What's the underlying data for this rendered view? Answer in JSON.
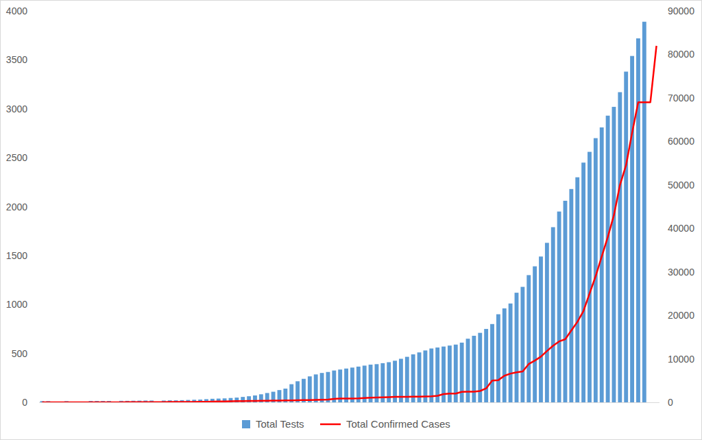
{
  "chart_data": {
    "type": "bar",
    "categories": [
      null,
      null,
      null,
      null,
      null,
      null,
      null,
      null,
      null,
      null,
      null,
      null,
      null,
      null,
      null,
      null,
      null,
      null,
      null,
      null,
      null,
      null,
      null,
      null,
      null,
      null,
      null,
      null,
      null,
      null,
      null,
      null,
      null,
      null,
      null,
      null,
      null,
      null,
      null,
      null,
      null,
      null,
      null,
      null,
      null,
      null,
      null,
      null,
      null,
      null,
      null,
      null,
      null,
      null,
      null,
      null,
      null,
      null,
      null,
      null,
      null,
      null,
      null,
      null,
      null,
      null,
      null,
      null,
      null,
      null,
      null,
      null,
      null,
      null,
      null,
      null,
      null,
      null,
      null,
      null,
      null,
      null,
      null,
      null,
      null,
      null,
      null,
      null,
      null,
      null,
      null,
      null,
      null,
      null,
      null,
      null,
      null,
      null,
      null,
      null,
      null,
      null
    ],
    "series": [
      {
        "name": "Total Tests",
        "type": "bar",
        "color": "#5b9bd5",
        "values": [
          12,
          12,
          0,
          0,
          12,
          0,
          0,
          0,
          14,
          14,
          14,
          14,
          0,
          15,
          15,
          16,
          17,
          18,
          18,
          0,
          18,
          20,
          20,
          22,
          24,
          26,
          28,
          32,
          36,
          38,
          40,
          44,
          48,
          55,
          62,
          70,
          82,
          95,
          108,
          125,
          140,
          185,
          215,
          240,
          265,
          285,
          300,
          310,
          325,
          335,
          345,
          355,
          365,
          375,
          385,
          390,
          400,
          410,
          425,
          445,
          465,
          490,
          510,
          530,
          550,
          560,
          570,
          580,
          590,
          610,
          650,
          680,
          710,
          750,
          800,
          900,
          960,
          1010,
          1120,
          1180,
          1300,
          1390,
          1490,
          1630,
          1790,
          1950,
          2060,
          2180,
          2300,
          2450,
          2560,
          2700,
          2810,
          2930,
          3020,
          3170,
          3380,
          3540,
          3720,
          3890,
          null,
          null
        ]
      },
      {
        "name": "Total Confirmed Cases",
        "type": "line",
        "color": "#ff0000",
        "axis": "y2",
        "values": [
          0,
          0,
          0,
          0,
          0,
          0,
          0,
          0,
          0,
          0,
          10,
          10,
          10,
          10,
          20,
          20,
          30,
          30,
          40,
          40,
          50,
          60,
          60,
          70,
          80,
          90,
          100,
          120,
          150,
          180,
          200,
          230,
          260,
          280,
          300,
          320,
          340,
          360,
          380,
          400,
          430,
          450,
          470,
          500,
          520,
          550,
          580,
          620,
          800,
          850,
          870,
          880,
          900,
          1000,
          1050,
          1100,
          1150,
          1200,
          1250,
          1260,
          1280,
          1300,
          1320,
          1350,
          1380,
          1500,
          1900,
          2000,
          2000,
          2400,
          2450,
          2450,
          2600,
          3200,
          5000,
          5100,
          6100,
          6600,
          6900,
          7100,
          8800,
          9600,
          10500,
          11800,
          13000,
          14000,
          14500,
          16500,
          18500,
          21000,
          25000,
          29000,
          33500,
          38000,
          43000,
          50000,
          54500,
          62000,
          69000,
          69000,
          69000,
          82000
        ]
      }
    ],
    "ylim": [
      0,
      4000
    ],
    "yticks": [
      0,
      500,
      1000,
      1500,
      2000,
      2500,
      3000,
      3500,
      4000
    ],
    "y2lim": [
      0,
      90000
    ],
    "y2ticks": [
      0,
      10000,
      20000,
      30000,
      40000,
      50000,
      60000,
      70000,
      80000,
      90000
    ],
    "grid": false,
    "legend": "bottom",
    "tick_labels": "y"
  }
}
